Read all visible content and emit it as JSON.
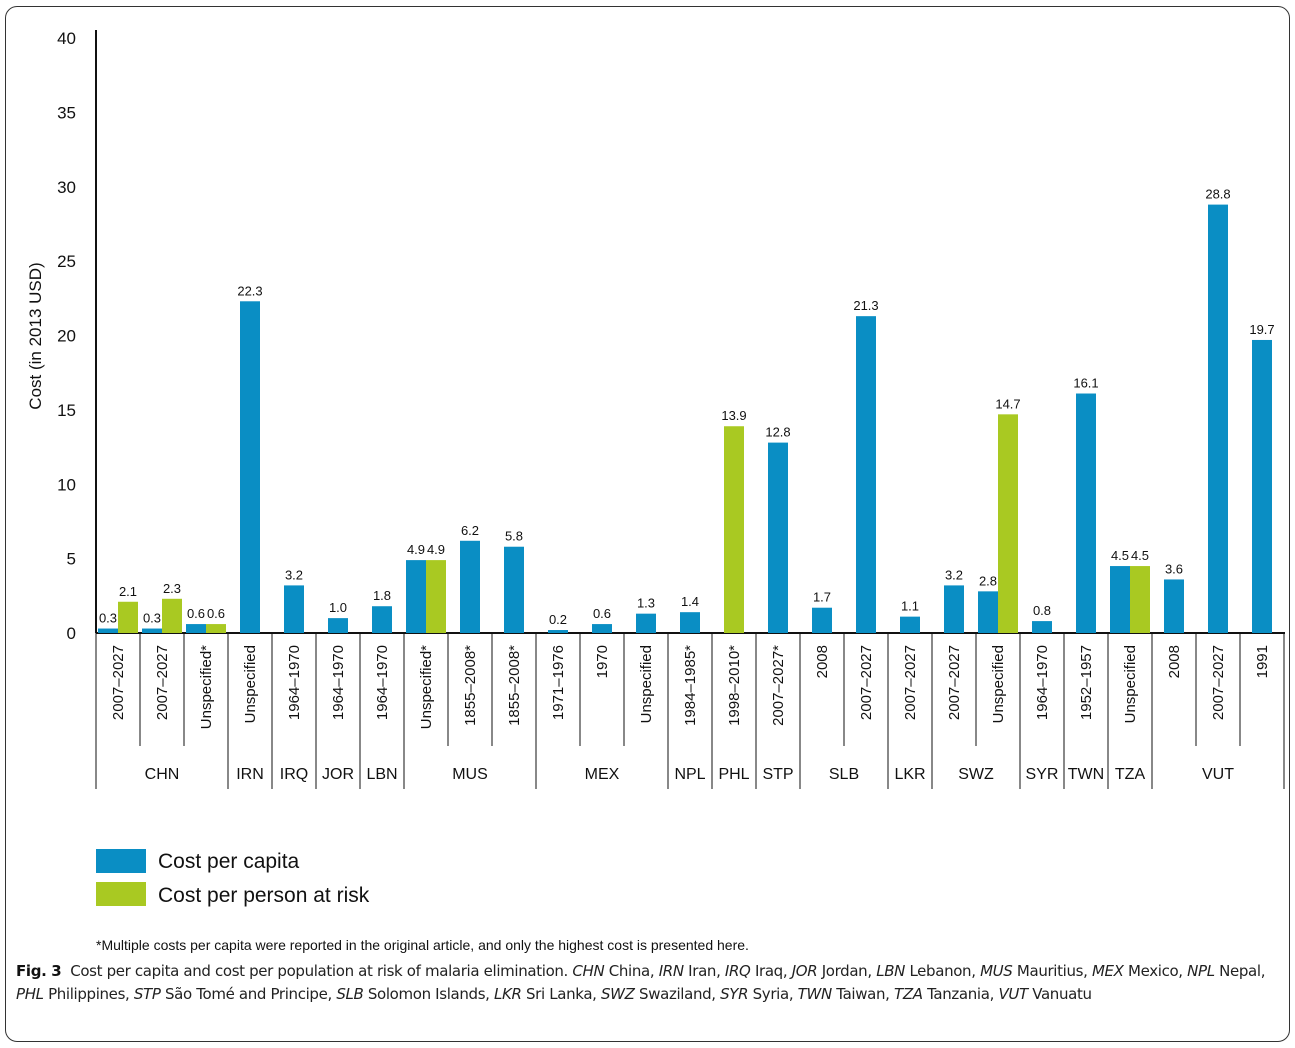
{
  "chart_data": {
    "type": "bar",
    "ylabel": "Cost (in 2013 USD)",
    "ylim": [
      0,
      40
    ],
    "yticks": [
      "0",
      "5",
      "10",
      "15",
      "20",
      "25",
      "30",
      "35",
      "40"
    ],
    "grid": false,
    "legend_position": "bottom-left",
    "series": [
      {
        "name": "Cost per capita",
        "color": "#0a8ec4"
      },
      {
        "name": "Cost per person at risk",
        "color": "#a9c922"
      }
    ],
    "groups": [
      {
        "country": "CHN",
        "periods": [
          {
            "label": "2007–2027",
            "capita": 0.3,
            "risk": 2.1,
            "capita_label": "0.3",
            "risk_label": "2.1"
          },
          {
            "label": "2007–2027",
            "capita": 0.3,
            "risk": 2.3,
            "capita_label": "0.3",
            "risk_label": "2.3"
          },
          {
            "label": "Unspecified*",
            "capita": 0.6,
            "risk": 0.6,
            "capita_label": "0.6",
            "risk_label": "0.6"
          }
        ]
      },
      {
        "country": "IRN",
        "periods": [
          {
            "label": "Unspecified",
            "capita": 22.3,
            "capita_label": "22.3"
          }
        ]
      },
      {
        "country": "IRQ",
        "periods": [
          {
            "label": "1964–1970",
            "capita": 3.2,
            "capita_label": "3.2"
          }
        ]
      },
      {
        "country": "JOR",
        "periods": [
          {
            "label": "1964–1970",
            "capita": 1.0,
            "capita_label": "1.0"
          }
        ]
      },
      {
        "country": "LBN",
        "periods": [
          {
            "label": "1964–1970",
            "capita": 1.8,
            "capita_label": "1.8"
          }
        ]
      },
      {
        "country": "MUS",
        "periods": [
          {
            "label": "Unspecified*",
            "capita": 4.9,
            "risk": 4.9,
            "capita_label": "4.9",
            "risk_label": "4.9"
          },
          {
            "label": "1855–2008*",
            "capita": 6.2,
            "capita_label": "6.2"
          },
          {
            "label": "1855–2008*",
            "capita": 5.8,
            "capita_label": "5.8"
          }
        ]
      },
      {
        "country": "MEX",
        "periods": [
          {
            "label": "1971–1976",
            "capita": 0.2,
            "capita_label": "0.2"
          },
          {
            "label": "1970",
            "capita": 0.6,
            "capita_label": "0.6"
          },
          {
            "label": "Unspecified",
            "capita": 1.3,
            "capita_label": "1.3"
          }
        ]
      },
      {
        "country": "NPL",
        "periods": [
          {
            "label": "1984–1985*",
            "capita": 1.4,
            "capita_label": "1.4"
          }
        ]
      },
      {
        "country": "PHL",
        "periods": [
          {
            "label": "1998–2010*",
            "risk": 13.9,
            "risk_label": "13.9"
          }
        ]
      },
      {
        "country": "STP",
        "periods": [
          {
            "label": "2007–2027*",
            "capita": 12.8,
            "capita_label": "12.8"
          }
        ]
      },
      {
        "country": "SLB",
        "periods": [
          {
            "label": "2008",
            "capita": 1.7,
            "capita_label": "1.7"
          },
          {
            "label": "2007–2027",
            "capita": 21.3,
            "capita_label": "21.3"
          }
        ]
      },
      {
        "country": "LKR",
        "periods": [
          {
            "label": "2007–2027",
            "capita": 1.1,
            "capita_label": "1.1"
          }
        ]
      },
      {
        "country": "SWZ",
        "periods": [
          {
            "label": "2007–2027",
            "capita": 3.2,
            "capita_label": "3.2"
          },
          {
            "label": "Unspecified",
            "capita": 2.8,
            "risk": 14.7,
            "capita_label": "2.8",
            "risk_label": "14.7"
          }
        ]
      },
      {
        "country": "SYR",
        "periods": [
          {
            "label": "1964–1970",
            "capita": 0.8,
            "capita_label": "0.8"
          }
        ]
      },
      {
        "country": "TWN",
        "periods": [
          {
            "label": "1952–1957",
            "capita": 16.1,
            "capita_label": "16.1"
          }
        ]
      },
      {
        "country": "TZA",
        "periods": [
          {
            "label": "Unspecified",
            "capita": 4.5,
            "risk": 4.5,
            "capita_label": "4.5",
            "risk_label": "4.5"
          }
        ]
      },
      {
        "country": "VUT",
        "periods": [
          {
            "label": "2008",
            "capita": 3.6,
            "capita_label": "3.6"
          },
          {
            "label": "2007–2027",
            "capita": 28.8,
            "capita_label": "28.8"
          },
          {
            "label": "1991",
            "capita": 19.7,
            "capita_label": "19.7"
          }
        ]
      }
    ]
  },
  "footnote": "*Multiple costs per capita were reported in the original article, and only the highest cost is presented here.",
  "caption": {
    "fig_label": "Fig. 3",
    "text": "Cost per capita and cost per population at risk of malaria elimination.",
    "abbreviations": [
      {
        "abbr": "CHN",
        "name": "China"
      },
      {
        "abbr": "IRN",
        "name": "Iran"
      },
      {
        "abbr": "IRQ",
        "name": "Iraq"
      },
      {
        "abbr": "JOR",
        "name": "Jordan"
      },
      {
        "abbr": "LBN",
        "name": "Lebanon"
      },
      {
        "abbr": "MUS",
        "name": "Mauritius"
      },
      {
        "abbr": "MEX",
        "name": "Mexico"
      },
      {
        "abbr": "NPL",
        "name": "Nepal"
      },
      {
        "abbr": "PHL",
        "name": "Philippines"
      },
      {
        "abbr": "STP",
        "name": "São Tomé and Principe"
      },
      {
        "abbr": "SLB",
        "name": "Solomon Islands"
      },
      {
        "abbr": "LKR",
        "name": "Sri Lanka"
      },
      {
        "abbr": "SWZ",
        "name": "Swaziland"
      },
      {
        "abbr": "SYR",
        "name": "Syria"
      },
      {
        "abbr": "TWN",
        "name": "Taiwan"
      },
      {
        "abbr": "TZA",
        "name": "Tanzania"
      },
      {
        "abbr": "VUT",
        "name": "Vanuatu"
      }
    ]
  }
}
